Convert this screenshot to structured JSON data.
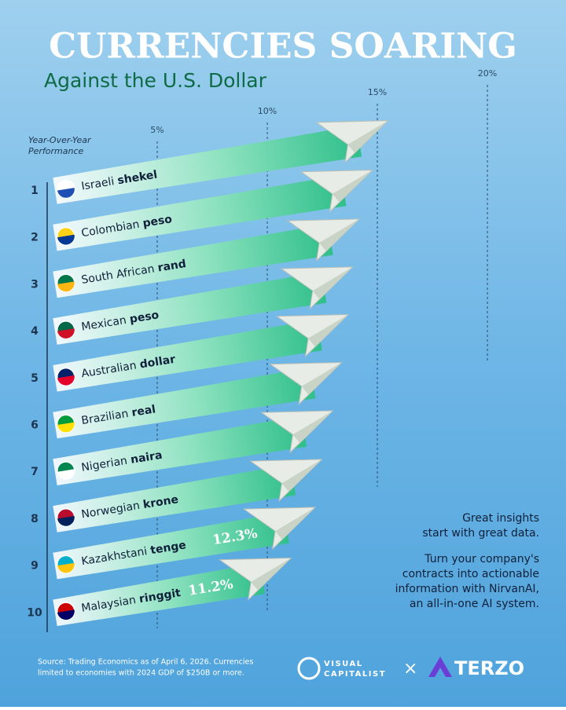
{
  "chart_data": {
    "type": "bar",
    "title": "CURRENCIES SOARING",
    "subtitle": "Against the U.S. Dollar",
    "axis_label": "Year-Over-Year Performance",
    "categories": [
      "Israeli shekel",
      "Colombian peso",
      "South African rand",
      "Mexican peso",
      "Australian dollar",
      "Brazilian real",
      "Nigerian naira",
      "Norwegian krone",
      "Kazakhstani tenge",
      "Malaysian ringgit"
    ],
    "ranks": [
      1,
      2,
      3,
      4,
      5,
      6,
      7,
      8,
      9,
      10
    ],
    "values": [
      15.6,
      14.9,
      14.3,
      14.0,
      13.8,
      13.5,
      13.1,
      12.6,
      12.3,
      11.2
    ],
    "value_labels": [
      null,
      null,
      null,
      null,
      null,
      null,
      null,
      null,
      "12.3%",
      "11.2%"
    ],
    "color": "#2fbf8a",
    "xlim": [
      0,
      23
    ],
    "xticks": [
      {
        "value": 5,
        "label": "5%"
      },
      {
        "value": 10,
        "label": "10%"
      },
      {
        "value": 15,
        "label": "15%"
      },
      {
        "value": 20,
        "label": "20%"
      }
    ],
    "annotations": [
      [
        "Great insights",
        "start with great data."
      ],
      [
        "Turn your company's",
        "contracts into actionable",
        "information with NirvanAI,",
        "an all-in-one AI system."
      ]
    ],
    "source": [
      "Source: Trading Economics as of April 6, 2026. Currencies",
      "limited to economies with 2024 GDP of $250B or more."
    ],
    "logos": [
      "VISUAL",
      "CAPITALIST",
      "TERZO"
    ]
  }
}
